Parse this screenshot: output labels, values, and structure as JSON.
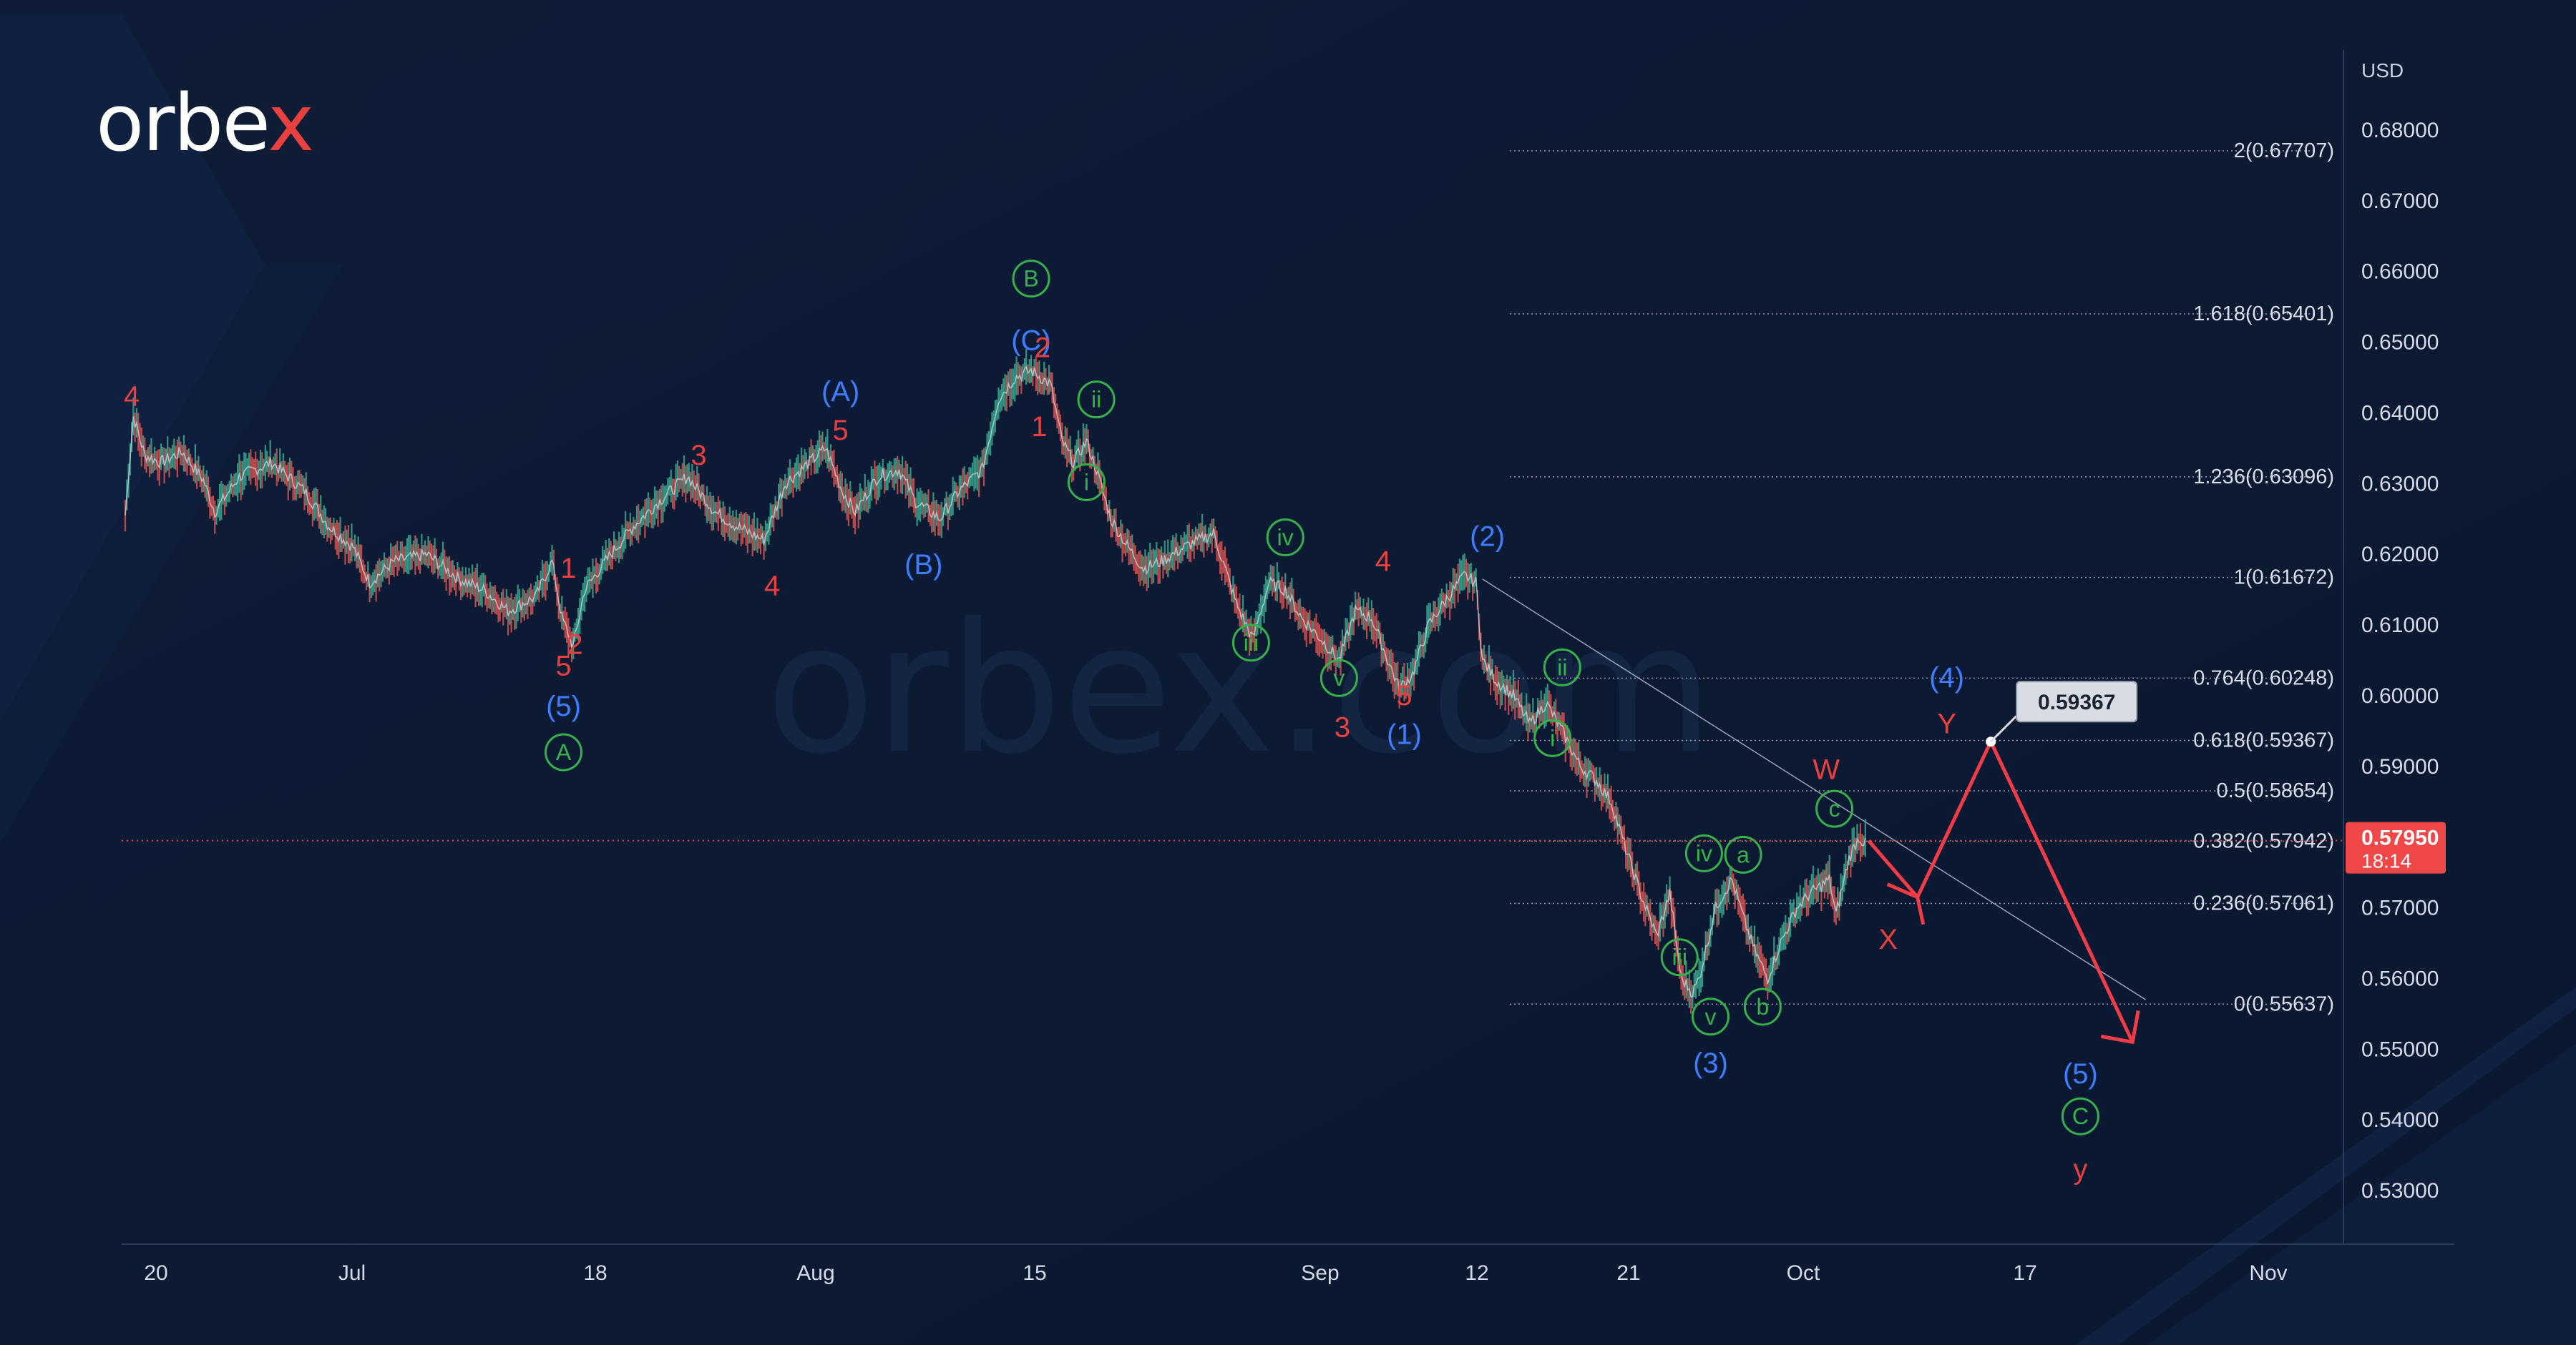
{
  "brand": {
    "logo_text_main": "orbe",
    "logo_text_x": "x",
    "watermark": "orbex.com"
  },
  "chart_data": {
    "type": "line",
    "price_scale_label": "USD",
    "yaxis_ticks": [
      "0.68000",
      "0.67000",
      "0.66000",
      "0.65000",
      "0.64000",
      "0.63000",
      "0.62000",
      "0.61000",
      "0.60000",
      "0.59000",
      "0.58000",
      "0.57000",
      "0.56000",
      "0.55000",
      "0.54000",
      "0.53000"
    ],
    "xaxis_ticks": [
      "20",
      "Jul",
      "18",
      "Aug",
      "15",
      "Sep",
      "12",
      "21",
      "Oct",
      "17",
      "Nov"
    ],
    "ylim": [
      0.5235,
      0.6876
    ],
    "current_price": {
      "value": "0.57950",
      "countdown": "18:14"
    },
    "fib_levels": [
      {
        "label": "2(0.67707)",
        "price": 0.67707
      },
      {
        "label": "1.618(0.65401)",
        "price": 0.65401
      },
      {
        "label": "1.236(0.63096)",
        "price": 0.63096
      },
      {
        "label": "1(0.61672)",
        "price": 0.61672
      },
      {
        "label": "0.764(0.60248)",
        "price": 0.60248
      },
      {
        "label": "0.618(0.59367)",
        "price": 0.59367
      },
      {
        "label": "0.5(0.58654)",
        "price": 0.58654
      },
      {
        "label": "0.382(0.57942)",
        "price": 0.57942
      },
      {
        "label": "0.236(0.57061)",
        "price": 0.57061
      },
      {
        "label": "0(0.55637)",
        "price": 0.55637
      }
    ],
    "target_label": "0.59367",
    "price_path": [
      [
        0,
        0.6255
      ],
      [
        5,
        0.6395
      ],
      [
        12,
        0.634
      ],
      [
        22,
        0.633
      ],
      [
        35,
        0.6345
      ],
      [
        48,
        0.6305
      ],
      [
        55,
        0.626
      ],
      [
        70,
        0.631
      ],
      [
        90,
        0.633
      ],
      [
        110,
        0.629
      ],
      [
        125,
        0.624
      ],
      [
        140,
        0.621
      ],
      [
        150,
        0.616
      ],
      [
        165,
        0.619
      ],
      [
        185,
        0.62
      ],
      [
        205,
        0.6165
      ],
      [
        220,
        0.615
      ],
      [
        235,
        0.612
      ],
      [
        252,
        0.614
      ],
      [
        262,
        0.619
      ],
      [
        268,
        0.611
      ],
      [
        275,
        0.607
      ],
      [
        282,
        0.615
      ],
      [
        298,
        0.62
      ],
      [
        312,
        0.624
      ],
      [
        330,
        0.628
      ],
      [
        345,
        0.631
      ],
      [
        362,
        0.626
      ],
      [
        375,
        0.624
      ],
      [
        392,
        0.622
      ],
      [
        405,
        0.63
      ],
      [
        420,
        0.633
      ],
      [
        430,
        0.635
      ],
      [
        440,
        0.629
      ],
      [
        448,
        0.626
      ],
      [
        462,
        0.631
      ],
      [
        475,
        0.632
      ],
      [
        485,
        0.6275
      ],
      [
        500,
        0.625
      ],
      [
        512,
        0.629
      ],
      [
        526,
        0.632
      ],
      [
        536,
        0.642
      ],
      [
        546,
        0.645
      ],
      [
        556,
        0.646
      ],
      [
        568,
        0.644
      ],
      [
        575,
        0.636
      ],
      [
        582,
        0.633
      ],
      [
        590,
        0.636
      ],
      [
        596,
        0.632
      ],
      [
        605,
        0.625
      ],
      [
        614,
        0.6215
      ],
      [
        625,
        0.618
      ],
      [
        636,
        0.619
      ],
      [
        650,
        0.621
      ],
      [
        668,
        0.623
      ],
      [
        682,
        0.613
      ],
      [
        692,
        0.608
      ],
      [
        702,
        0.616
      ],
      [
        712,
        0.615
      ],
      [
        722,
        0.611
      ],
      [
        734,
        0.608
      ],
      [
        745,
        0.605
      ],
      [
        755,
        0.612
      ],
      [
        765,
        0.611
      ],
      [
        775,
        0.605
      ],
      [
        782,
        0.601
      ],
      [
        790,
        0.603
      ],
      [
        800,
        0.61
      ],
      [
        812,
        0.614
      ],
      [
        822,
        0.617
      ],
      [
        829,
        0.616
      ],
      [
        833,
        0.605
      ],
      [
        842,
        0.602
      ],
      [
        852,
        0.6
      ],
      [
        862,
        0.596
      ],
      [
        872,
        0.599
      ],
      [
        882,
        0.595
      ],
      [
        893,
        0.59
      ],
      [
        903,
        0.588
      ],
      [
        912,
        0.585
      ],
      [
        920,
        0.579
      ],
      [
        930,
        0.572
      ],
      [
        940,
        0.566
      ],
      [
        948,
        0.572
      ],
      [
        955,
        0.56
      ],
      [
        962,
        0.558
      ],
      [
        966,
        0.56
      ],
      [
        976,
        0.57
      ],
      [
        986,
        0.574
      ],
      [
        994,
        0.568
      ],
      [
        1000,
        0.564
      ],
      [
        1008,
        0.56
      ],
      [
        1016,
        0.565
      ],
      [
        1026,
        0.57
      ],
      [
        1034,
        0.572
      ],
      [
        1046,
        0.574
      ],
      [
        1050,
        0.569
      ],
      [
        1058,
        0.577
      ],
      [
        1064,
        0.58
      ],
      [
        1068,
        0.579
      ]
    ],
    "projection": [
      [
        1070,
        0.5795
      ],
      [
        1100,
        0.5715
      ],
      [
        1145,
        0.5935
      ],
      [
        1232,
        0.551
      ]
    ],
    "trendline": [
      [
        833,
        0.6165
      ],
      [
        1240,
        0.557
      ]
    ],
    "labels": [
      {
        "text": "4",
        "color": "red",
        "style": "plain",
        "x": 4,
        "y": 0.6423
      },
      {
        "text": "(5)",
        "color": "blue",
        "style": "plain",
        "x": 269,
        "y": 0.5985
      },
      {
        "text": "A",
        "color": "green",
        "style": "circle",
        "x": 269,
        "y": 0.592
      },
      {
        "text": "5",
        "color": "red",
        "style": "plain",
        "x": 269,
        "y": 0.6042
      },
      {
        "text": "2",
        "color": "red",
        "style": "plain",
        "x": 276,
        "y": 0.6072
      },
      {
        "text": "1",
        "color": "red",
        "style": "plain",
        "x": 272,
        "y": 0.618
      },
      {
        "text": "3",
        "color": "red",
        "style": "plain",
        "x": 352,
        "y": 0.634
      },
      {
        "text": "4",
        "color": "red",
        "style": "plain",
        "x": 397,
        "y": 0.6155
      },
      {
        "text": "5",
        "color": "red",
        "style": "plain",
        "x": 439,
        "y": 0.6375
      },
      {
        "text": "(A)",
        "color": "blue",
        "style": "plain",
        "x": 439,
        "y": 0.643
      },
      {
        "text": "(B)",
        "color": "blue",
        "style": "plain",
        "x": 490,
        "y": 0.6185
      },
      {
        "text": "B",
        "color": "green",
        "style": "circle",
        "x": 556,
        "y": 0.659
      },
      {
        "text": "(C)",
        "color": "blue",
        "style": "plain",
        "x": 556,
        "y": 0.6502
      },
      {
        "text": "2",
        "color": "red",
        "style": "plain",
        "x": 563,
        "y": 0.6492
      },
      {
        "text": "1",
        "color": "red",
        "style": "plain",
        "x": 561,
        "y": 0.638
      },
      {
        "text": "ii",
        "color": "green",
        "style": "circle",
        "x": 596,
        "y": 0.6419
      },
      {
        "text": "i",
        "color": "green",
        "style": "circle",
        "x": 590,
        "y": 0.6302
      },
      {
        "text": "iv",
        "color": "green",
        "style": "circle",
        "x": 712,
        "y": 0.6224
      },
      {
        "text": "iii",
        "color": "green",
        "style": "circle",
        "x": 691,
        "y": 0.6075
      },
      {
        "text": "v",
        "color": "green",
        "style": "circle",
        "x": 745,
        "y": 0.6025
      },
      {
        "text": "4",
        "color": "red",
        "style": "plain",
        "x": 772,
        "y": 0.619
      },
      {
        "text": "3",
        "color": "red",
        "style": "plain",
        "x": 747,
        "y": 0.5955
      },
      {
        "text": "5",
        "color": "red",
        "style": "plain",
        "x": 785,
        "y": 0.6
      },
      {
        "text": "(1)",
        "color": "blue",
        "style": "plain",
        "x": 785,
        "y": 0.5945
      },
      {
        "text": "(2)",
        "color": "blue",
        "style": "plain",
        "x": 836,
        "y": 0.6225
      },
      {
        "text": "ii",
        "color": "green",
        "style": "circle",
        "x": 882,
        "y": 0.604
      },
      {
        "text": "i",
        "color": "green",
        "style": "circle",
        "x": 876,
        "y": 0.594
      },
      {
        "text": "iv",
        "color": "green",
        "style": "circle",
        "x": 969,
        "y": 0.5777
      },
      {
        "text": "a",
        "color": "green",
        "style": "circle",
        "x": 993,
        "y": 0.5775
      },
      {
        "text": "iii",
        "color": "green",
        "style": "circle",
        "x": 954,
        "y": 0.563
      },
      {
        "text": "v",
        "color": "green",
        "style": "circle",
        "x": 973,
        "y": 0.5546
      },
      {
        "text": "b",
        "color": "green",
        "style": "circle",
        "x": 1005,
        "y": 0.556
      },
      {
        "text": "(3)",
        "color": "blue",
        "style": "plain",
        "x": 973,
        "y": 0.548
      },
      {
        "text": "W",
        "color": "red",
        "style": "plain",
        "x": 1044,
        "y": 0.5895
      },
      {
        "text": "c",
        "color": "green",
        "style": "circle",
        "x": 1049,
        "y": 0.584
      },
      {
        "text": "X",
        "color": "red",
        "style": "plain",
        "x": 1082,
        "y": 0.5655
      },
      {
        "text": "(4)",
        "color": "blue",
        "style": "plain",
        "x": 1118,
        "y": 0.6025
      },
      {
        "text": "Y",
        "color": "red",
        "style": "plain",
        "x": 1118,
        "y": 0.596
      },
      {
        "text": "(5)",
        "color": "blue",
        "style": "plain",
        "x": 1200,
        "y": 0.5465
      },
      {
        "text": "C",
        "color": "green",
        "style": "circle",
        "x": 1200,
        "y": 0.5405
      },
      {
        "text": "y",
        "color": "red",
        "style": "plain",
        "x": 1200,
        "y": 0.533
      }
    ]
  }
}
